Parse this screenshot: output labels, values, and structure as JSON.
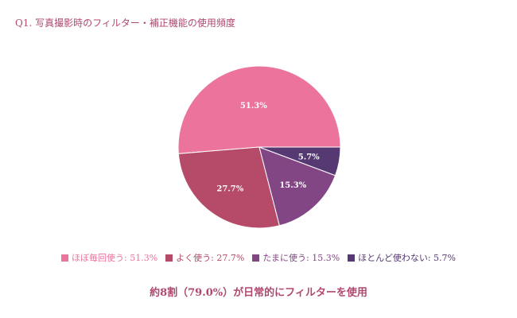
{
  "chart_data": {
    "type": "pie",
    "title": "Q1. 写真撮影時のフィルター・補正機能の使用頻度",
    "slices": [
      {
        "name": "ほぼ毎回使う",
        "value": 51.3,
        "label": "51.3%",
        "color": "#ec739c",
        "legend": "ほぼ毎回使う: 51.3%"
      },
      {
        "name": "よく使う",
        "value": 27.7,
        "label": "27.7%",
        "color": "#b54b68",
        "legend": "よく使う: 27.7%"
      },
      {
        "name": "たまに使う",
        "value": 15.3,
        "label": "15.3%",
        "color": "#824685",
        "legend": "たまに使う: 15.3%"
      },
      {
        "name": "ほとんど使わない",
        "value": 5.7,
        "label": "5.7%",
        "color": "#563873",
        "legend": "ほとんど使わない: 5.7%"
      }
    ],
    "start_angle": "3 o'clock",
    "direction": "counterclockwise",
    "legend_position": "bottom",
    "annotation": "約8割（79.0%）が日常的にフィルターを使用"
  }
}
